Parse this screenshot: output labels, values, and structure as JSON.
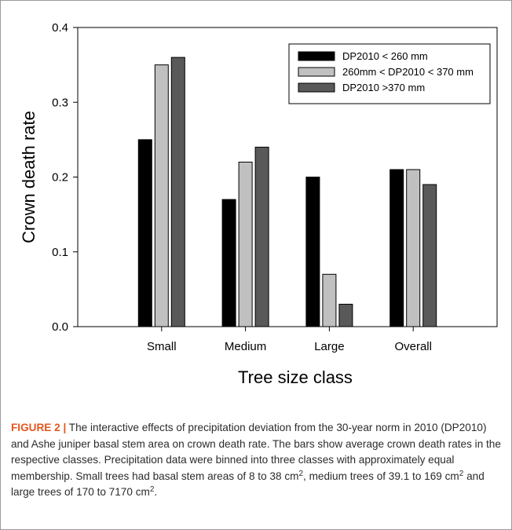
{
  "chart_data": {
    "type": "bar",
    "title": "",
    "xlabel": "Tree size class",
    "ylabel": "Crown death rate",
    "ylim": [
      0,
      0.4
    ],
    "yticks": [
      "0.0",
      "0.1",
      "0.2",
      "0.3",
      "0.4"
    ],
    "categories": [
      "Small",
      "Medium",
      "Large",
      "Overall"
    ],
    "grid": false,
    "legend_position": "top-right",
    "series": [
      {
        "name": "DP2010 < 260 mm",
        "color": "#000000",
        "values": [
          0.25,
          0.17,
          0.2,
          0.21
        ]
      },
      {
        "name": "260mm < DP2010 < 370 mm",
        "color": "#c0c0c0",
        "values": [
          0.35,
          0.22,
          0.07,
          0.21
        ]
      },
      {
        "name": "DP2010 >370 mm",
        "color": "#595959",
        "values": [
          0.36,
          0.24,
          0.03,
          0.19
        ]
      }
    ]
  },
  "caption": {
    "label": "FIGURE 2 |",
    "part1": " The interactive effects of precipitation deviation from the 30-year norm in 2010 (DP2010) and Ashe juniper basal stem area on crown death rate. The bars show average crown death rates in the respective classes. Precipitation data were binned into three classes with approximately equal membership. Small trees had basal stem areas of 8 to 38 cm",
    "sup1": "2",
    "part2": ", medium trees of 39.1 to 169 cm",
    "sup2": "2",
    "part3": " and large trees of 170 to 7170 cm",
    "sup3": "2",
    "part4": "."
  }
}
